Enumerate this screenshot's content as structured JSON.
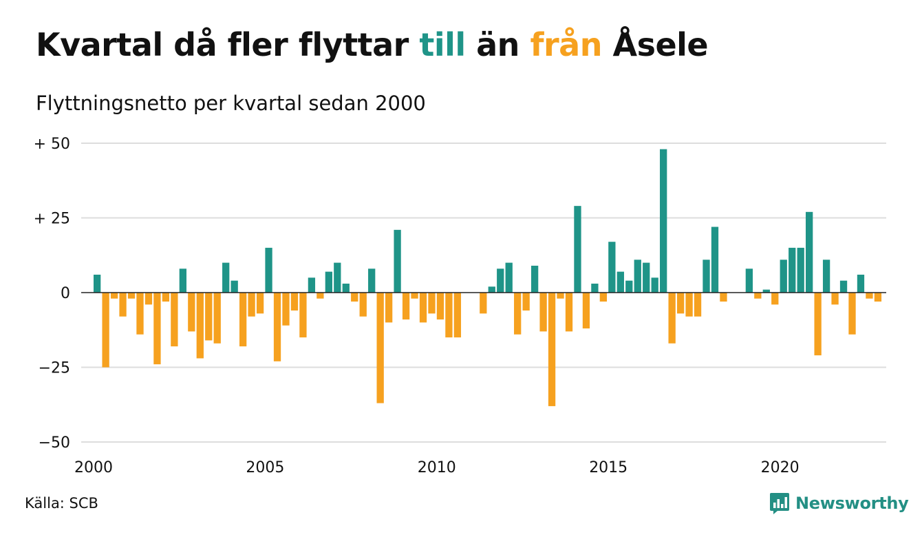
{
  "title": {
    "part1": "Kvartal då fler flyttar ",
    "till": "till",
    "part2": " än ",
    "fran": "från",
    "part3": " Åsele"
  },
  "subtitle": "Flyttningsnetto per kvartal sedan 2000",
  "source": "Källa: SCB",
  "brand": "Newsworthy",
  "colors": {
    "positive": "#1f9488",
    "negative": "#f6a11f",
    "grid": "#dddddd",
    "zero": "#222222"
  },
  "chart_data": {
    "type": "bar",
    "x_start": "2000",
    "y_ticks": [
      50,
      25,
      0,
      -25,
      -50
    ],
    "y_tick_labels": [
      "+ 50",
      "+ 25",
      "0",
      "−25",
      "−50"
    ],
    "x_ticks": [
      "2000",
      "2005",
      "2010",
      "2015",
      "2020"
    ],
    "ylim": [
      -50,
      50
    ],
    "values": [
      6,
      -25,
      -2,
      -8,
      -2,
      -14,
      -4,
      -24,
      -3,
      -18,
      8,
      -13,
      -22,
      -16,
      -17,
      10,
      4,
      -18,
      -8,
      -7,
      15,
      -23,
      -11,
      -6,
      -15,
      5,
      -2,
      7,
      10,
      3,
      -3,
      -8,
      8,
      -37,
      -10,
      21,
      -9,
      -2,
      -10,
      -7,
      -9,
      -15,
      -15,
      0,
      0,
      -7,
      2,
      8,
      10,
      -14,
      -6,
      9,
      -13,
      -38,
      -2,
      -13,
      29,
      -12,
      3,
      -3,
      17,
      7,
      4,
      11,
      10,
      5,
      48,
      -17,
      -7,
      -8,
      -8,
      11,
      22,
      -3,
      0,
      0,
      8,
      -2,
      1,
      -4,
      11,
      15,
      15,
      27,
      -21,
      11,
      -4,
      4,
      -14,
      6,
      -2,
      -3
    ]
  }
}
